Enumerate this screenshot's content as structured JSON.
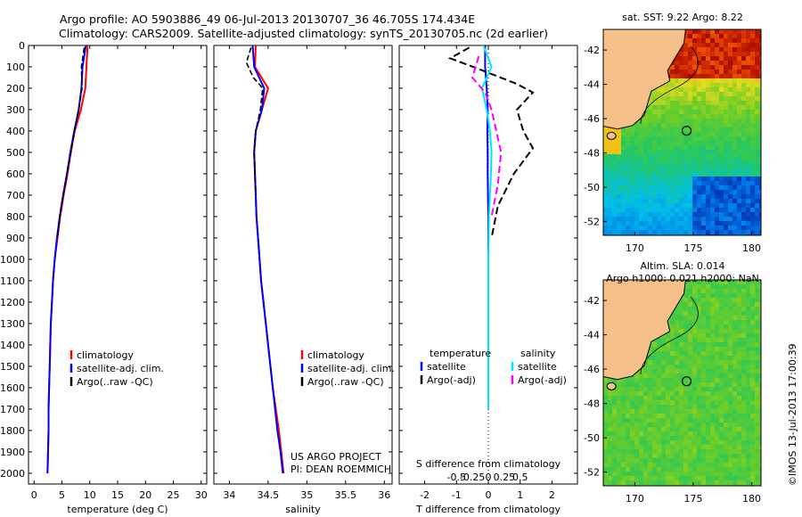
{
  "header": {
    "title_line1": "Argo profile: AO 5903886_49 06-Jul-2013 20130707_36 46.705S 174.434E",
    "title_line2": "Climatology: CARS2009. Satellite-adjusted climatology: synTS_20130705.nc (2d earlier)"
  },
  "colors": {
    "climatology": "#ff0000",
    "satellite": "#0000ff",
    "argo": "#000000",
    "sal_satellite": "#00e5ff",
    "sal_argo": "#ff00ff",
    "land": "#f5c08a"
  },
  "chart_data": [
    {
      "type": "line",
      "panel": "temperature",
      "xlabel": "temperature (deg C)",
      "xlim": [
        -1,
        31
      ],
      "ylim": [
        0,
        2050
      ],
      "xticks": [
        0,
        5,
        10,
        15,
        20,
        25,
        30
      ],
      "yticks": [
        0,
        100,
        200,
        300,
        400,
        500,
        600,
        700,
        800,
        900,
        1000,
        1100,
        1200,
        1300,
        1400,
        1500,
        1600,
        1700,
        1800,
        1900,
        2000
      ],
      "legend": [
        "climatology",
        "satellite-adj. clim.",
        "Argo(..raw -QC)"
      ],
      "series": [
        {
          "name": "climatology",
          "x": [
            9.6,
            9.4,
            9.2,
            8.4,
            7.3,
            6.6,
            6.0,
            5.3,
            4.7,
            4.2,
            3.7,
            3.4,
            3.2,
            3.0,
            2.9,
            2.8,
            2.7,
            2.6,
            2.6,
            2.5,
            2.4
          ],
          "y": [
            0,
            100,
            200,
            300,
            400,
            500,
            600,
            700,
            800,
            900,
            1000,
            1100,
            1200,
            1300,
            1400,
            1500,
            1600,
            1700,
            1800,
            1900,
            2000
          ]
        },
        {
          "name": "satellite-adj. clim.",
          "x": [
            9.3,
            8.7,
            8.5,
            8.0,
            7.2,
            6.5,
            5.9,
            5.2,
            4.6,
            4.1,
            3.7,
            3.4,
            3.2,
            3.0,
            2.9,
            2.8,
            2.7,
            2.6,
            2.6,
            2.5,
            2.4
          ],
          "y": [
            0,
            100,
            200,
            300,
            400,
            500,
            600,
            700,
            800,
            900,
            1000,
            1100,
            1200,
            1300,
            1400,
            1500,
            1600,
            1700,
            1800,
            1900,
            2000
          ]
        },
        {
          "name": "Argo(..raw -QC)",
          "x": [
            9.0,
            8.5,
            8.6,
            8.0,
            7.2,
            6.6,
            5.9,
            5.2,
            4.6,
            4.2
          ],
          "y": [
            10,
            100,
            200,
            300,
            400,
            500,
            600,
            700,
            800,
            900
          ]
        }
      ]
    },
    {
      "type": "line",
      "panel": "salinity",
      "xlabel": "salinity",
      "xlim": [
        33.8,
        36.1
      ],
      "ylim": [
        0,
        2050
      ],
      "xticks": [
        34,
        34.5,
        35,
        35.5,
        36
      ],
      "legend": [
        "climatology",
        "satellite-adj. clim.",
        "Argo(..raw -QC)"
      ],
      "annotation": [
        "US ARGO PROJECT",
        "PI: DEAN ROEMMICH"
      ],
      "series": [
        {
          "name": "climatology",
          "x": [
            34.34,
            34.33,
            34.5,
            34.42,
            34.34,
            34.32,
            34.33,
            34.34,
            34.35,
            34.37,
            34.39,
            34.41,
            34.44,
            34.47,
            34.5,
            34.53,
            34.56,
            34.6,
            34.64,
            34.67,
            34.7
          ],
          "y": [
            0,
            100,
            200,
            300,
            400,
            500,
            600,
            700,
            800,
            900,
            1000,
            1100,
            1200,
            1300,
            1400,
            1500,
            1600,
            1700,
            1800,
            1900,
            2000
          ]
        },
        {
          "name": "satellite-adj. clim.",
          "x": [
            34.3,
            34.32,
            34.45,
            34.42,
            34.34,
            34.32,
            34.33,
            34.34,
            34.35,
            34.37,
            34.39,
            34.41,
            34.44,
            34.47,
            34.5,
            34.53,
            34.56,
            34.59,
            34.62,
            34.66,
            34.69
          ],
          "y": [
            0,
            100,
            200,
            300,
            400,
            500,
            600,
            700,
            800,
            900,
            1000,
            1100,
            1200,
            1300,
            1400,
            1500,
            1600,
            1700,
            1800,
            1900,
            2000
          ]
        },
        {
          "name": "Argo(..raw -QC)",
          "x": [
            34.28,
            34.22,
            34.31,
            34.43,
            34.4,
            34.34,
            34.32,
            34.33,
            34.34
          ],
          "y": [
            10,
            80,
            150,
            200,
            300,
            400,
            500,
            600,
            700
          ]
        }
      ]
    },
    {
      "type": "line",
      "panel": "difference",
      "xlabel": "T difference from climatology",
      "xlabel_top": "S difference from climatology",
      "xlim": [
        -2.8,
        2.8
      ],
      "ylim": [
        0,
        2050
      ],
      "xticks_T": [
        -2,
        -1,
        0,
        1,
        2
      ],
      "xticks_S": [
        "-0.5",
        "-0.25",
        "0",
        "0.25",
        "0.5"
      ],
      "legend_temperature_title": "temperature",
      "legend_salinity_title": "salinity",
      "legend": [
        "satellite",
        "Argo(-adj)",
        "satellite",
        "Argo(-adj)"
      ],
      "series": [
        {
          "name": "satellite",
          "x": [
            -0.1,
            -0.1,
            -0.05,
            -0.02,
            -0.03,
            -0.02,
            -0.02,
            -0.01,
            0,
            0,
            0,
            0,
            0,
            0,
            0,
            0,
            0,
            0
          ],
          "y": [
            0,
            100,
            200,
            300,
            400,
            500,
            600,
            700,
            800,
            900,
            1000,
            1100,
            1200,
            1300,
            1400,
            1500,
            1600,
            1700
          ]
        },
        {
          "name": "Argo(-adj)",
          "x": [
            -0.6,
            -1.2,
            -0.3,
            0.9,
            1.4,
            0.9,
            1.1,
            1.4,
            0.8,
            0.3,
            0.1
          ],
          "y": [
            10,
            60,
            110,
            180,
            220,
            300,
            400,
            480,
            600,
            750,
            900
          ]
        },
        {
          "name": "satellite",
          "x": [
            -0.15,
            0.1,
            -0.2,
            -0.05,
            0.05,
            0.1,
            0.08,
            0.05,
            0.02,
            0.01,
            0,
            0,
            0,
            0,
            0,
            0,
            0,
            0
          ],
          "y": [
            0,
            100,
            200,
            300,
            400,
            500,
            600,
            700,
            800,
            900,
            1000,
            1100,
            1200,
            1300,
            1400,
            1500,
            1600,
            1700
          ]
        },
        {
          "name": "Argo(-adj)",
          "x": [
            -0.3,
            -0.5,
            -0.1,
            0.1,
            0.4,
            0.3,
            0.1
          ],
          "y": [
            50,
            150,
            220,
            300,
            500,
            650,
            800
          ]
        }
      ]
    },
    {
      "type": "heatmap",
      "panel": "sst_map",
      "title": "sat. SST: 9.22  Argo: 8.22",
      "xticks": [
        170,
        175,
        180
      ],
      "yticks": [
        -42,
        -44,
        -46,
        -48,
        -50,
        -52
      ]
    },
    {
      "type": "heatmap",
      "panel": "sla_map",
      "title_line1": "Altim. SLA: 0.014",
      "title_line2": "Argo h1000: 0.021 h2000: NaN",
      "xticks": [
        170,
        175,
        180
      ],
      "yticks": [
        -42,
        -44,
        -46,
        -48,
        -50,
        -52
      ]
    }
  ],
  "side_text": "©IMOS 13-Jul-2013 17:00:39"
}
